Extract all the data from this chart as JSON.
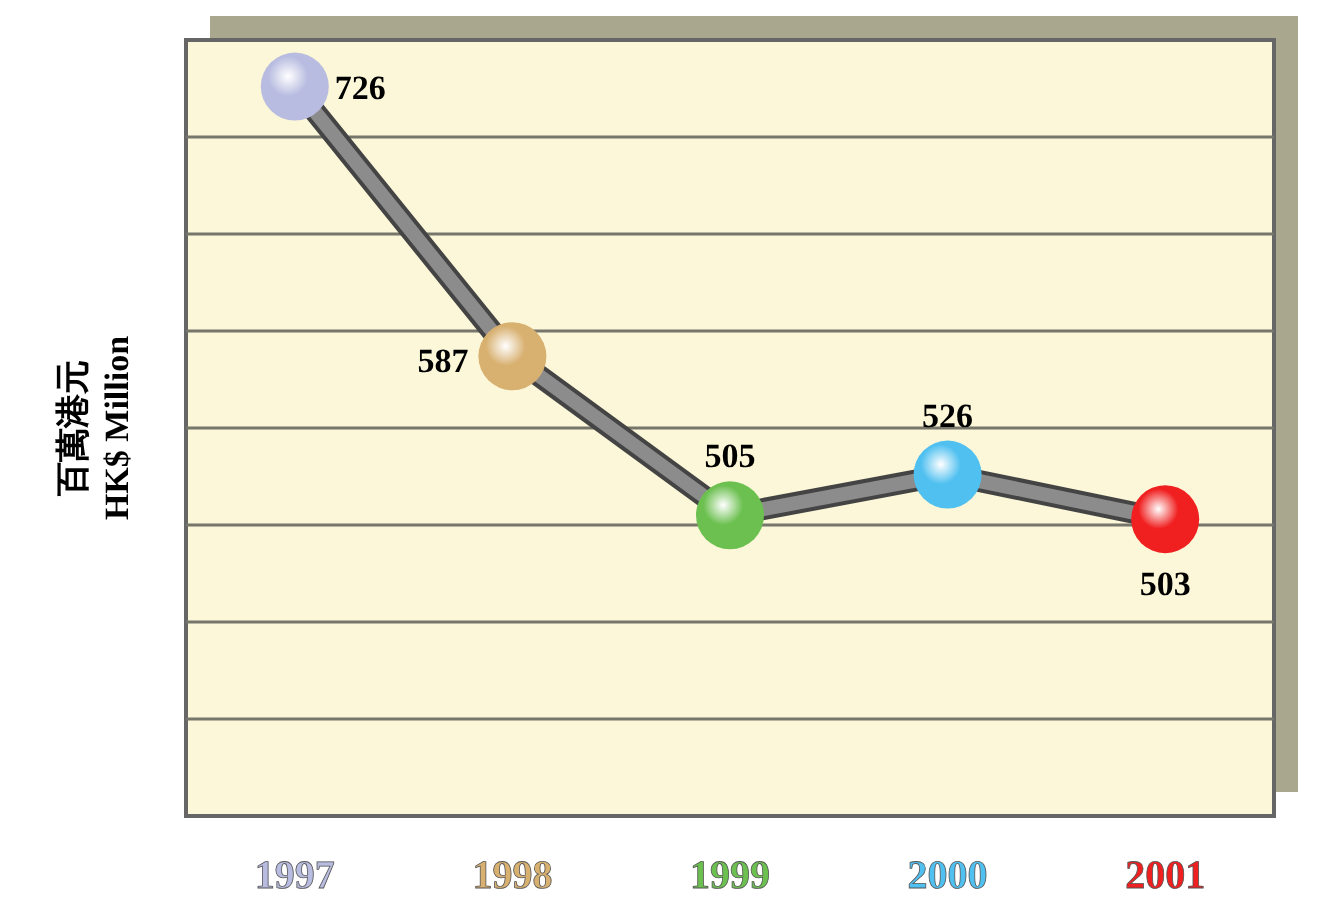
{
  "chart_data": {
    "type": "line",
    "ylabel": "百萬港元\nHK$ Million",
    "categories": [
      "1997",
      "1998",
      "1999",
      "2000",
      "2001"
    ],
    "series": [
      {
        "color": "#8c8c8c",
        "values": [
          726,
          587,
          505,
          526,
          503
        ],
        "colors": [
          "#b8bce0",
          "#d8b070",
          "#6cc050",
          "#50c0f0",
          "#f02020"
        ]
      }
    ],
    "ylim": [
      350,
      750
    ],
    "yticks": [
      {
        "value": 400,
        "label": null
      },
      {
        "value": 450,
        "label": null
      },
      {
        "value": 500,
        "label": null
      },
      {
        "value": 550,
        "label": null
      },
      {
        "value": 600,
        "label": null
      },
      {
        "value": 650,
        "label": null
      },
      {
        "value": 700,
        "label": null
      }
    ],
    "tick_labels": "x",
    "grid": "y",
    "marker": "circle",
    "line_style": "solid",
    "data_labels": true
  }
}
